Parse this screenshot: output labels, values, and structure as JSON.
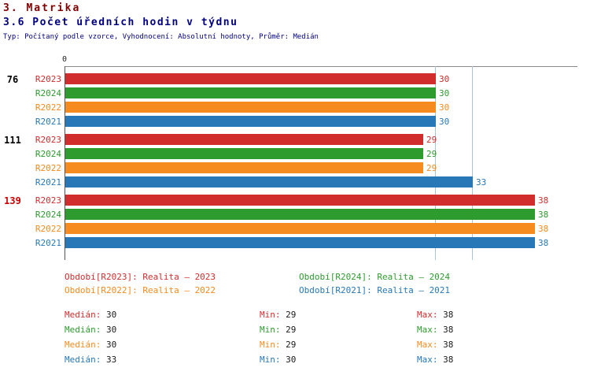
{
  "header": {
    "title": "3. Matrika",
    "subtitle": "3.6 Počet úředních hodin v týdnu",
    "meta": "Typ: Počítaný podle vzorce, Vyhodnocení: Absolutní hodnoty, Průměr: Medián"
  },
  "colors": {
    "series": {
      "R2023": "#d22d2d",
      "R2024": "#2e9b2e",
      "R2022": "#f68b1f",
      "R2021": "#2878b8"
    },
    "title": "#800000",
    "subtitle": "#000080",
    "meta": "#000080",
    "grid": "#a9c4d6",
    "axis": "#555555",
    "value_text": "#1a1a1a",
    "group_label": "#000000",
    "group_label_highlight": "#cc0000"
  },
  "chart_data": {
    "type": "bar",
    "orientation": "horizontal",
    "title": "3.6 Počet úředních hodin v týdnu",
    "x_origin_label": "0",
    "xlim": [
      0,
      41.5
    ],
    "grid": "median-lines-only",
    "legend_position": "bottom",
    "series_order": [
      "R2023",
      "R2024",
      "R2022",
      "R2021"
    ],
    "groups": [
      {
        "label": "76",
        "highlight": false,
        "values": {
          "R2023": 30,
          "R2024": 30,
          "R2022": 30,
          "R2021": 30
        }
      },
      {
        "label": "111",
        "highlight": false,
        "values": {
          "R2023": 29,
          "R2024": 29,
          "R2022": 29,
          "R2021": 33
        }
      },
      {
        "label": "139",
        "highlight": true,
        "values": {
          "R2023": 38,
          "R2024": 38,
          "R2022": 38,
          "R2021": 38
        }
      }
    ],
    "gridlines": [
      30,
      33
    ],
    "legend": [
      {
        "series": "R2023",
        "label": "Období[R2023]: Realita – 2023"
      },
      {
        "series": "R2024",
        "label": "Období[R2024]: Realita – 2024"
      },
      {
        "series": "R2022",
        "label": "Období[R2022]: Realita – 2022"
      },
      {
        "series": "R2021",
        "label": "Období[R2021]: Realita – 2021"
      }
    ],
    "stats": [
      {
        "series": "R2023",
        "median_label": "Medián:",
        "median": 30,
        "min_label": "Min:",
        "min": 29,
        "max_label": "Max:",
        "max": 38
      },
      {
        "series": "R2024",
        "median_label": "Medián:",
        "median": 30,
        "min_label": "Min:",
        "min": 29,
        "max_label": "Max:",
        "max": 38
      },
      {
        "series": "R2022",
        "median_label": "Medián:",
        "median": 30,
        "min_label": "Min:",
        "min": 29,
        "max_label": "Max:",
        "max": 38
      },
      {
        "series": "R2021",
        "median_label": "Medián:",
        "median": 33,
        "min_label": "Min:",
        "min": 30,
        "max_label": "Max:",
        "max": 38
      }
    ]
  }
}
